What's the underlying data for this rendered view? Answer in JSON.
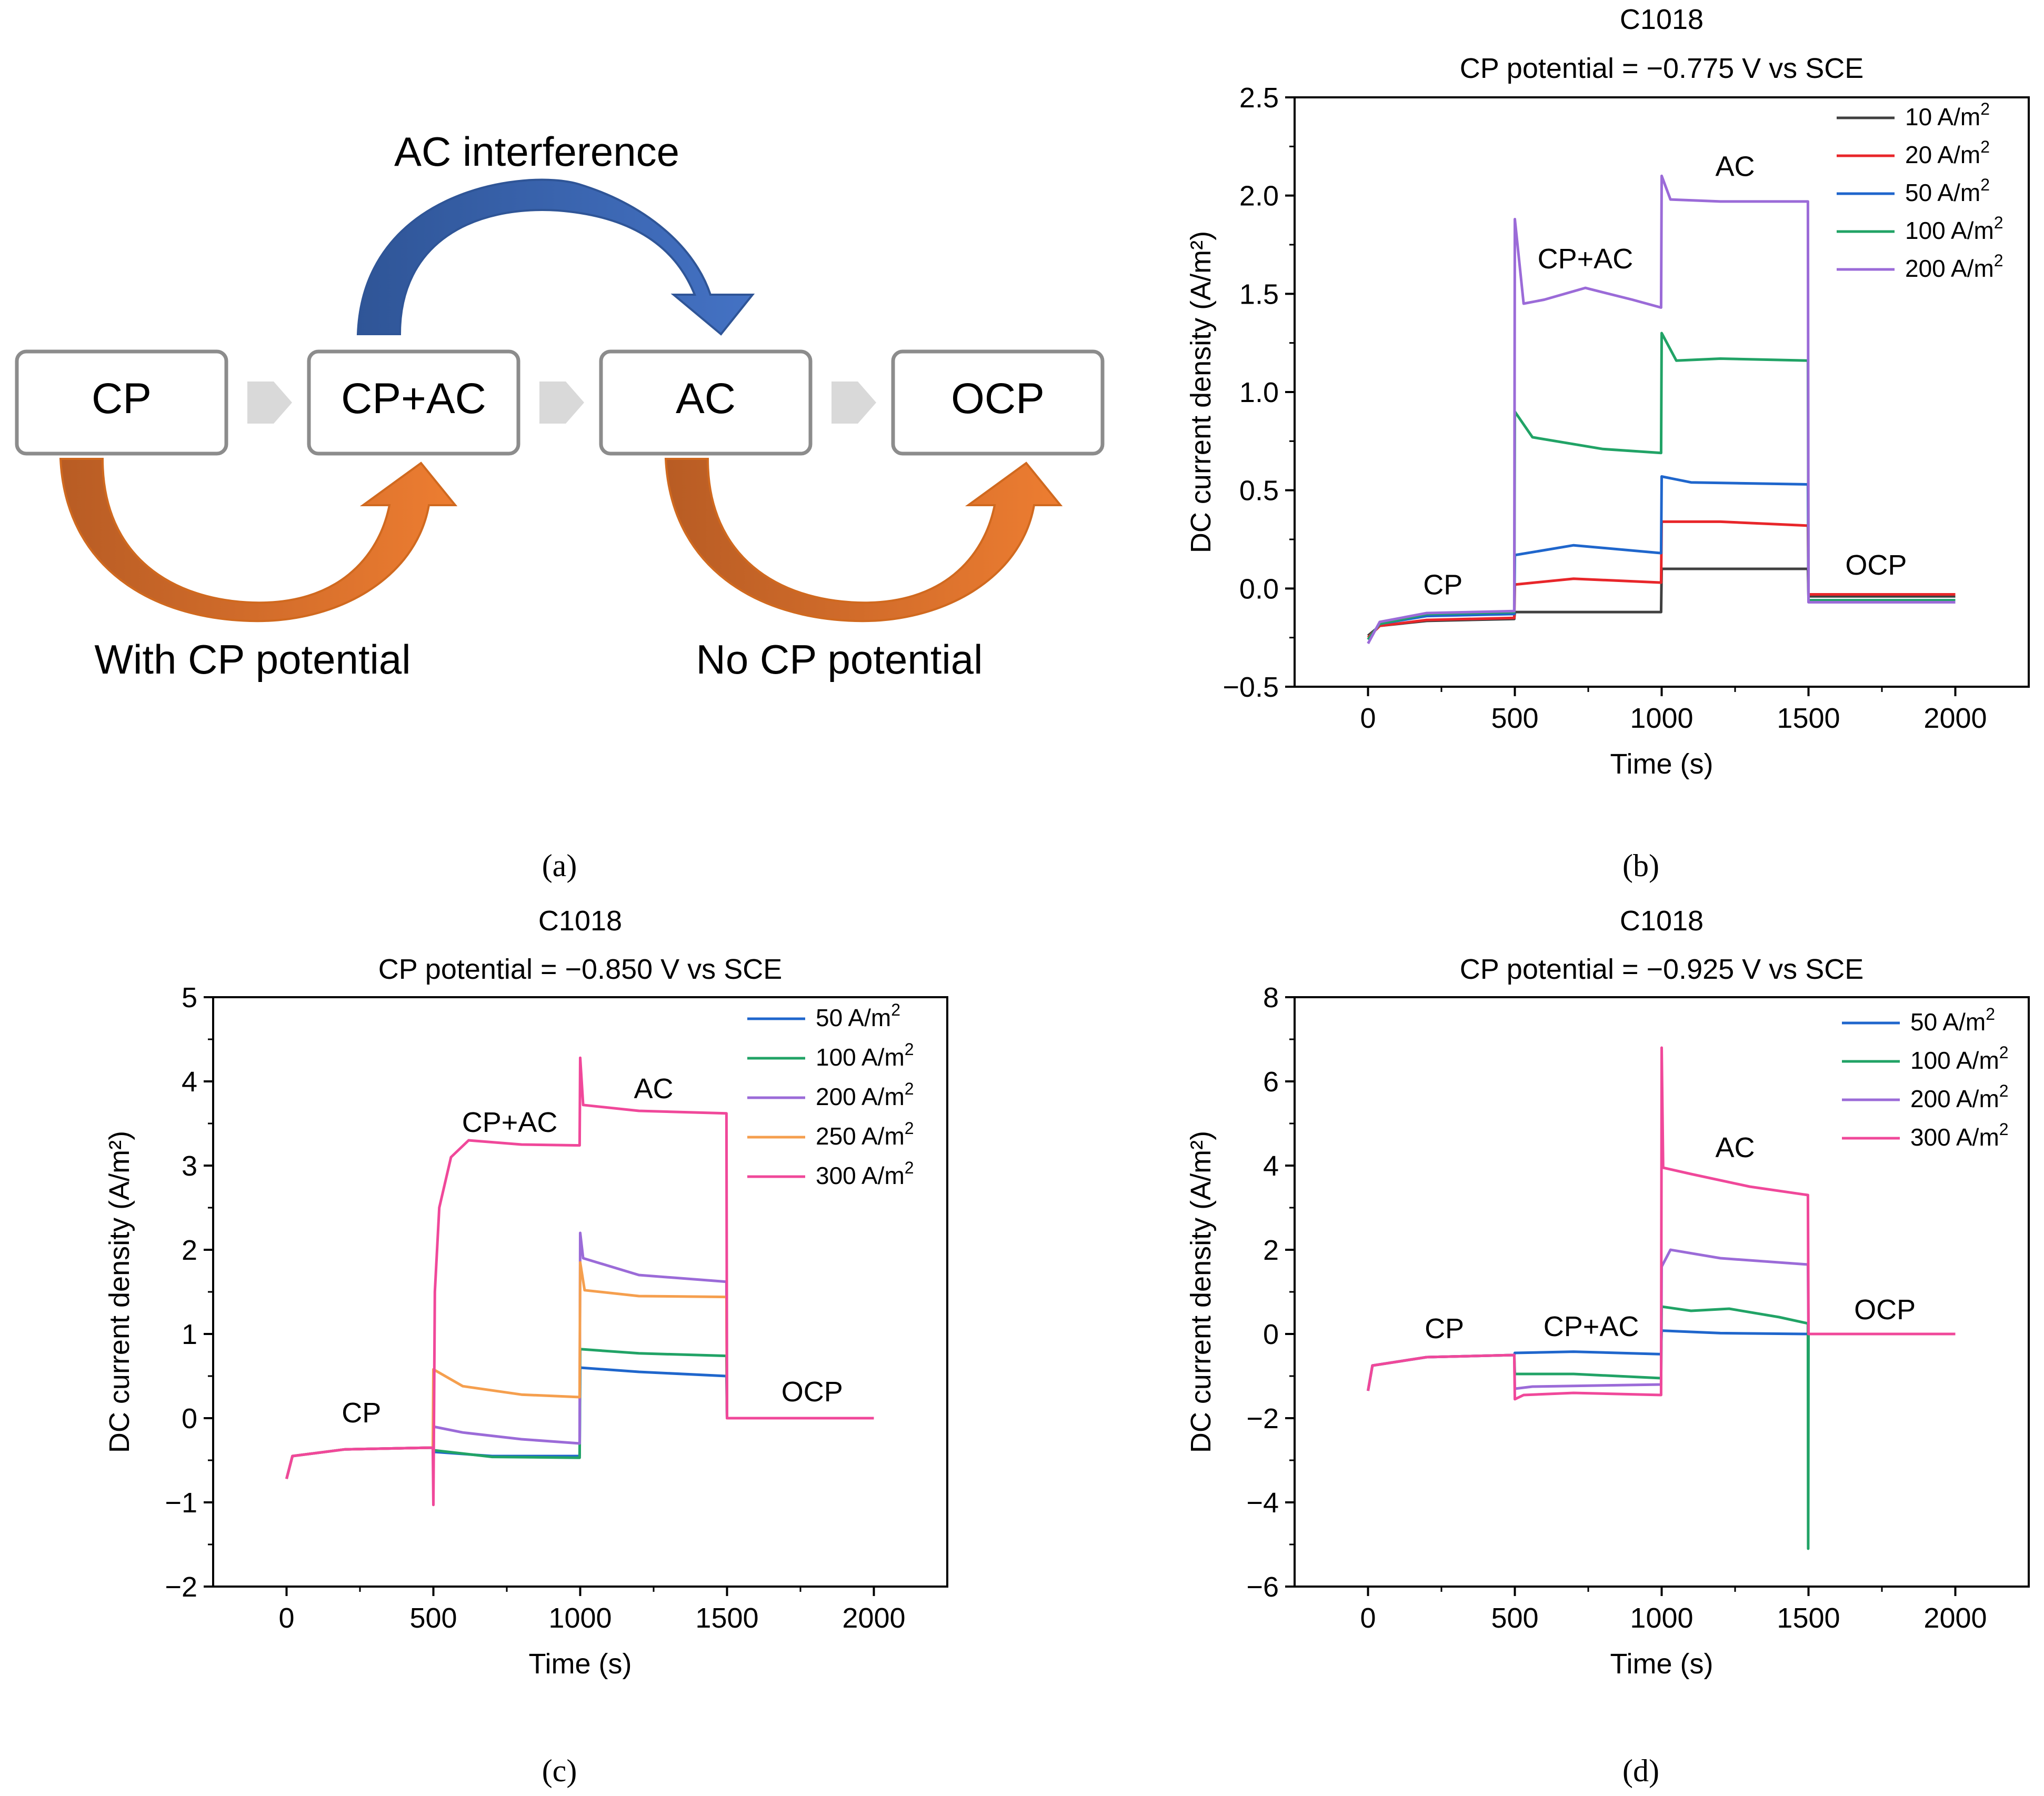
{
  "diagram": {
    "boxes": [
      "CP",
      "CP+AC",
      "AC",
      "OCP"
    ],
    "top_arrow_label": "AC interference",
    "bottom_left_label": "With CP potential",
    "bottom_right_label": "No CP potential",
    "colors": {
      "blue": "#4472C4",
      "orange": "#ED7D31",
      "box_border": "#8C8C8C",
      "chevron": "#D9D9D9"
    }
  },
  "captions": {
    "a": "(a)",
    "b": "(b)",
    "c": "(c)",
    "d": "(d)"
  },
  "chart_data": [
    {
      "id": "b",
      "type": "line",
      "title": "C1018",
      "subtitle": "CP potential = −0.775 V vs SCE",
      "xlabel": "Time (s)",
      "ylabel": "DC current density (A/m²)",
      "xlim": [
        -250,
        2250
      ],
      "ylim": [
        -0.5,
        2.5
      ],
      "xticks": [
        "0",
        "500",
        "1000",
        "1500",
        "2000"
      ],
      "xtick_values": [
        0,
        500,
        1000,
        1500,
        2000
      ],
      "yticks": [
        "−0.5",
        "0.0",
        "0.5",
        "1.0",
        "1.5",
        "2.0",
        "2.5"
      ],
      "ytick_values": [
        -0.5,
        0,
        0.5,
        1.0,
        1.5,
        2.0,
        2.5
      ],
      "annotations": [
        {
          "text": "CP",
          "x": 255,
          "y": -0.03
        },
        {
          "text": "CP+AC",
          "x": 740,
          "y": 1.63
        },
        {
          "text": "AC",
          "x": 1250,
          "y": 2.1
        },
        {
          "text": "OCP",
          "x": 1730,
          "y": 0.07
        }
      ],
      "series": [
        {
          "name": "10 A/m",
          "sup": "2",
          "color": "#404040",
          "points": [
            [
              0,
              -0.24
            ],
            [
              40,
              -0.19
            ],
            [
              200,
              -0.165
            ],
            [
              498,
              -0.155
            ],
            [
              500,
              -0.12
            ],
            [
              998,
              -0.12
            ],
            [
              1000,
              0.1
            ],
            [
              1300,
              0.1
            ],
            [
              1498,
              0.1
            ],
            [
              1500,
              -0.04
            ],
            [
              2000,
              -0.04
            ]
          ]
        },
        {
          "name": "20 A/m",
          "sup": "2",
          "color": "#E8262A",
          "points": [
            [
              0,
              -0.25
            ],
            [
              40,
              -0.19
            ],
            [
              200,
              -0.16
            ],
            [
              498,
              -0.15
            ],
            [
              500,
              0.02
            ],
            [
              700,
              0.05
            ],
            [
              998,
              0.03
            ],
            [
              1000,
              0.34
            ],
            [
              1200,
              0.34
            ],
            [
              1498,
              0.32
            ],
            [
              1500,
              -0.03
            ],
            [
              2000,
              -0.03
            ]
          ]
        },
        {
          "name": "50 A/m",
          "sup": "2",
          "color": "#1F66CC",
          "points": [
            [
              0,
              -0.26
            ],
            [
              40,
              -0.18
            ],
            [
              200,
              -0.14
            ],
            [
              498,
              -0.13
            ],
            [
              500,
              0.17
            ],
            [
              700,
              0.22
            ],
            [
              998,
              0.18
            ],
            [
              1000,
              0.57
            ],
            [
              1100,
              0.54
            ],
            [
              1498,
              0.53
            ],
            [
              1500,
              -0.06
            ],
            [
              2000,
              -0.06
            ]
          ]
        },
        {
          "name": "100 A/m",
          "sup": "2",
          "color": "#21A366",
          "points": [
            [
              0,
              -0.26
            ],
            [
              40,
              -0.18
            ],
            [
              200,
              -0.13
            ],
            [
              498,
              -0.12
            ],
            [
              500,
              0.9
            ],
            [
              560,
              0.77
            ],
            [
              800,
              0.71
            ],
            [
              998,
              0.69
            ],
            [
              1000,
              1.3
            ],
            [
              1050,
              1.16
            ],
            [
              1200,
              1.17
            ],
            [
              1498,
              1.16
            ],
            [
              1500,
              -0.06
            ],
            [
              2000,
              -0.06
            ]
          ]
        },
        {
          "name": "200 A/m",
          "sup": "2",
          "color": "#9B6BD8",
          "points": [
            [
              0,
              -0.28
            ],
            [
              40,
              -0.17
            ],
            [
              200,
              -0.125
            ],
            [
              498,
              -0.115
            ],
            [
              500,
              1.88
            ],
            [
              530,
              1.45
            ],
            [
              600,
              1.47
            ],
            [
              740,
              1.53
            ],
            [
              900,
              1.47
            ],
            [
              998,
              1.43
            ],
            [
              1000,
              2.1
            ],
            [
              1030,
              1.98
            ],
            [
              1200,
              1.97
            ],
            [
              1498,
              1.97
            ],
            [
              1500,
              -0.07
            ],
            [
              2000,
              -0.07
            ]
          ]
        }
      ]
    },
    {
      "id": "c",
      "type": "line",
      "title": "C1018",
      "subtitle": "CP potential = −0.850 V vs SCE",
      "xlabel": "Time (s)",
      "ylabel": "DC current density (A/m²)",
      "xlim": [
        -250,
        2250
      ],
      "ylim": [
        -2,
        5
      ],
      "xticks": [
        "0",
        "500",
        "1000",
        "1500",
        "2000"
      ],
      "xtick_values": [
        0,
        500,
        1000,
        1500,
        2000
      ],
      "yticks": [
        "−2",
        "−1",
        "0",
        "1",
        "2",
        "3",
        "4",
        "5"
      ],
      "ytick_values": [
        -2,
        -1,
        0,
        1,
        2,
        3,
        4,
        5
      ],
      "annotations": [
        {
          "text": "CP",
          "x": 255,
          "y": -0.05
        },
        {
          "text": "CP+AC",
          "x": 760,
          "y": 3.4
        },
        {
          "text": "AC",
          "x": 1250,
          "y": 3.8
        },
        {
          "text": "OCP",
          "x": 1790,
          "y": 0.2
        }
      ],
      "series": [
        {
          "name": "50 A/m",
          "sup": "2",
          "color": "#1F66CC",
          "points": [
            [
              0,
              -0.72
            ],
            [
              20,
              -0.45
            ],
            [
              200,
              -0.37
            ],
            [
              498,
              -0.35
            ],
            [
              500,
              -0.4
            ],
            [
              700,
              -0.45
            ],
            [
              998,
              -0.45
            ],
            [
              1000,
              0.6
            ],
            [
              1200,
              0.55
            ],
            [
              1498,
              0.5
            ],
            [
              1500,
              0
            ],
            [
              2000,
              0
            ]
          ]
        },
        {
          "name": "100 A/m",
          "sup": "2",
          "color": "#21A366",
          "points": [
            [
              0,
              -0.72
            ],
            [
              20,
              -0.45
            ],
            [
              200,
              -0.37
            ],
            [
              498,
              -0.35
            ],
            [
              500,
              -0.38
            ],
            [
              700,
              -0.46
            ],
            [
              998,
              -0.47
            ],
            [
              1000,
              0.82
            ],
            [
              1200,
              0.77
            ],
            [
              1498,
              0.74
            ],
            [
              1500,
              0
            ],
            [
              2000,
              0
            ]
          ]
        },
        {
          "name": "200 A/m",
          "sup": "2",
          "color": "#9B6BD8",
          "points": [
            [
              0,
              -0.72
            ],
            [
              20,
              -0.45
            ],
            [
              200,
              -0.37
            ],
            [
              498,
              -0.35
            ],
            [
              500,
              -0.1
            ],
            [
              600,
              -0.17
            ],
            [
              800,
              -0.25
            ],
            [
              998,
              -0.3
            ],
            [
              1000,
              2.2
            ],
            [
              1010,
              1.9
            ],
            [
              1200,
              1.7
            ],
            [
              1498,
              1.62
            ],
            [
              1500,
              0
            ],
            [
              2000,
              0
            ]
          ]
        },
        {
          "name": "250 A/m",
          "sup": "2",
          "color": "#F59F4E",
          "points": [
            [
              0,
              -0.72
            ],
            [
              20,
              -0.45
            ],
            [
              200,
              -0.37
            ],
            [
              498,
              -0.35
            ],
            [
              500,
              0.58
            ],
            [
              600,
              0.38
            ],
            [
              800,
              0.28
            ],
            [
              998,
              0.25
            ],
            [
              1000,
              1.85
            ],
            [
              1015,
              1.52
            ],
            [
              1200,
              1.45
            ],
            [
              1498,
              1.44
            ],
            [
              1500,
              0
            ],
            [
              2000,
              0
            ]
          ]
        },
        {
          "name": "300 A/m",
          "sup": "2",
          "color": "#F0489A",
          "points": [
            [
              0,
              -0.72
            ],
            [
              20,
              -0.45
            ],
            [
              200,
              -0.37
            ],
            [
              498,
              -0.35
            ],
            [
              500,
              -1.03
            ],
            [
              505,
              1.5
            ],
            [
              520,
              2.5
            ],
            [
              560,
              3.1
            ],
            [
              620,
              3.3
            ],
            [
              800,
              3.25
            ],
            [
              998,
              3.24
            ],
            [
              1000,
              4.28
            ],
            [
              1010,
              3.72
            ],
            [
              1200,
              3.65
            ],
            [
              1498,
              3.62
            ],
            [
              1500,
              0
            ],
            [
              2000,
              0
            ]
          ]
        }
      ]
    },
    {
      "id": "d",
      "type": "line",
      "title": "C1018",
      "subtitle": "CP potential = −0.925 V vs SCE",
      "xlabel": "Time (s)",
      "ylabel": "DC current density (A/m²)",
      "xlim": [
        -250,
        2250
      ],
      "ylim": [
        -6,
        8
      ],
      "xticks": [
        "0",
        "500",
        "1000",
        "1500",
        "2000"
      ],
      "xtick_values": [
        0,
        500,
        1000,
        1500,
        2000
      ],
      "yticks": [
        "−6",
        "−4",
        "−2",
        "0",
        "2",
        "4",
        "6",
        "8"
      ],
      "ytick_values": [
        -6,
        -4,
        -2,
        0,
        2,
        4,
        6,
        8
      ],
      "annotations": [
        {
          "text": "CP",
          "x": 260,
          "y": -0.1
        },
        {
          "text": "CP+AC",
          "x": 760,
          "y": -0.05
        },
        {
          "text": "AC",
          "x": 1250,
          "y": 4.2
        },
        {
          "text": "OCP",
          "x": 1760,
          "y": 0.35
        }
      ],
      "series": [
        {
          "name": "50 A/m",
          "sup": "2",
          "color": "#1F66CC",
          "points": [
            [
              0,
              -1.35
            ],
            [
              15,
              -0.75
            ],
            [
              200,
              -0.55
            ],
            [
              498,
              -0.5
            ],
            [
              500,
              -0.45
            ],
            [
              700,
              -0.42
            ],
            [
              998,
              -0.48
            ],
            [
              1000,
              0.08
            ],
            [
              1200,
              0.02
            ],
            [
              1498,
              0.0
            ],
            [
              1500,
              0
            ],
            [
              2000,
              0
            ]
          ]
        },
        {
          "name": "100 A/m",
          "sup": "2",
          "color": "#21A366",
          "points": [
            [
              0,
              -1.35
            ],
            [
              15,
              -0.75
            ],
            [
              200,
              -0.55
            ],
            [
              498,
              -0.5
            ],
            [
              500,
              -0.95
            ],
            [
              700,
              -0.95
            ],
            [
              998,
              -1.05
            ],
            [
              1000,
              0.65
            ],
            [
              1100,
              0.55
            ],
            [
              1230,
              0.6
            ],
            [
              1400,
              0.4
            ],
            [
              1498,
              0.25
            ],
            [
              1499,
              -5.1
            ],
            [
              1500,
              0
            ],
            [
              2000,
              0
            ]
          ]
        },
        {
          "name": "200 A/m",
          "sup": "2",
          "color": "#9B6BD8",
          "points": [
            [
              0,
              -1.35
            ],
            [
              15,
              -0.75
            ],
            [
              200,
              -0.55
            ],
            [
              498,
              -0.5
            ],
            [
              500,
              -1.3
            ],
            [
              560,
              -1.25
            ],
            [
              998,
              -1.2
            ],
            [
              1000,
              1.6
            ],
            [
              1030,
              2.0
            ],
            [
              1200,
              1.8
            ],
            [
              1498,
              1.65
            ],
            [
              1500,
              0
            ],
            [
              2000,
              0
            ]
          ]
        },
        {
          "name": "300 A/m",
          "sup": "2",
          "color": "#F0489A",
          "points": [
            [
              0,
              -1.35
            ],
            [
              15,
              -0.75
            ],
            [
              200,
              -0.55
            ],
            [
              498,
              -0.5
            ],
            [
              500,
              -1.55
            ],
            [
              530,
              -1.45
            ],
            [
              700,
              -1.4
            ],
            [
              998,
              -1.45
            ],
            [
              1000,
              6.8
            ],
            [
              1005,
              3.95
            ],
            [
              1100,
              3.8
            ],
            [
              1300,
              3.5
            ],
            [
              1498,
              3.3
            ],
            [
              1500,
              0
            ],
            [
              2000,
              0
            ]
          ]
        }
      ]
    }
  ]
}
